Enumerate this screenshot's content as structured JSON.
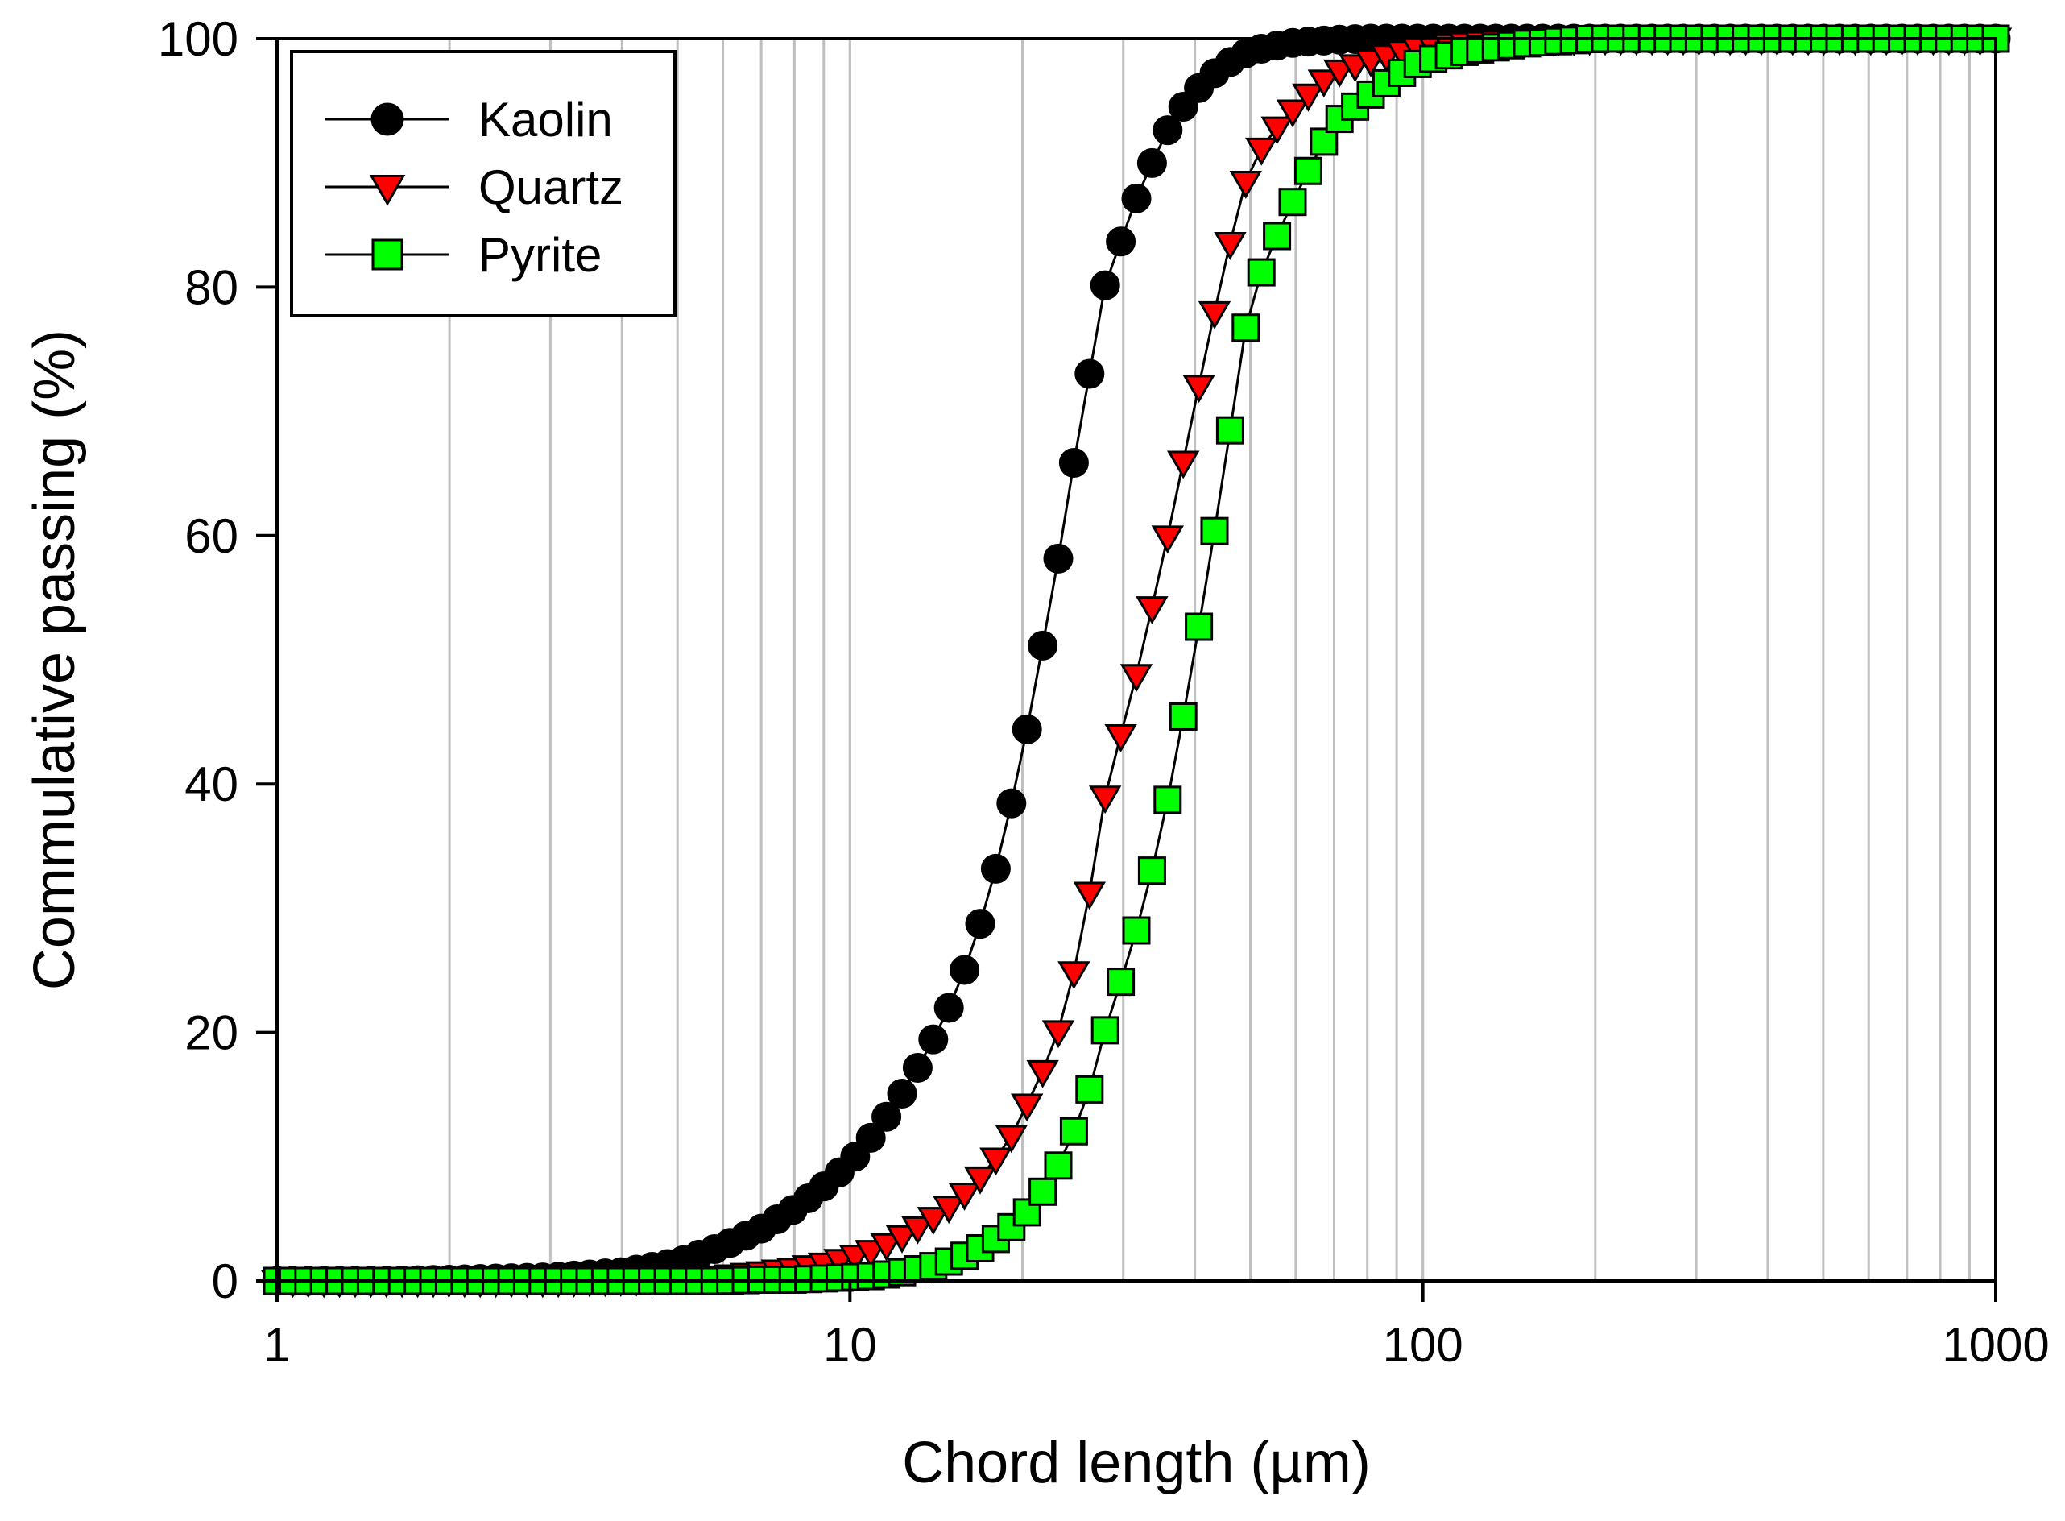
{
  "chart_data": {
    "type": "scatter",
    "xscale": "log",
    "xlim": [
      1,
      1000
    ],
    "ylim": [
      0,
      100
    ],
    "xlabel": "Chord length (µm)",
    "ylabel": "Commulative passing (%)",
    "xticks": [
      1,
      10,
      100,
      1000
    ],
    "xtick_labels": [
      "1",
      "10",
      "100",
      "1000"
    ],
    "yticks": [
      0,
      20,
      40,
      60,
      80,
      100
    ],
    "ytick_labels": [
      "0",
      "20",
      "40",
      "60",
      "80",
      "100"
    ],
    "grid": "vertical minor and major gridlines on x axis",
    "legend_position": "top-left",
    "series": [
      {
        "name": "Kaolin",
        "marker": "circle",
        "color": "#000000",
        "edge": "#000000",
        "x": [
          1,
          1.5,
          2,
          3,
          4,
          5,
          6,
          7,
          8,
          9,
          10,
          11,
          12,
          13,
          14,
          15,
          16,
          17,
          18,
          19,
          20,
          21,
          22,
          23,
          24,
          25,
          26,
          27,
          28,
          30,
          32,
          34,
          36,
          38,
          40,
          42,
          44,
          46,
          48,
          50,
          55,
          60,
          65,
          70,
          80,
          90,
          100,
          120,
          150,
          200,
          300,
          500,
          1000
        ],
        "y": [
          0,
          0,
          0.1,
          0.3,
          0.7,
          1.5,
          2.8,
          4.2,
          5.8,
          7.6,
          9.5,
          11.8,
          14.2,
          16.8,
          19.5,
          22.3,
          25.5,
          29.2,
          33.3,
          37.8,
          42.5,
          47.5,
          52.7,
          57.6,
          62.9,
          67.8,
          72.2,
          76.4,
          80.6,
          84.2,
          87.8,
          90.4,
          92.8,
          94.4,
          95.7,
          96.7,
          97.5,
          98.1,
          98.6,
          99.0,
          99.4,
          99.7,
          99.8,
          99.9,
          100,
          100,
          100,
          100,
          100,
          100,
          100,
          100,
          100
        ]
      },
      {
        "name": "Quartz",
        "marker": "triangle-down",
        "color": "#ff0000",
        "edge": "#000000",
        "x": [
          1,
          1.5,
          2,
          3,
          4,
          5,
          6,
          7,
          8,
          9,
          10,
          11,
          12,
          13,
          14,
          15,
          16,
          17,
          18,
          19,
          20,
          21,
          22,
          23,
          24,
          25,
          26,
          27,
          28,
          30,
          32,
          34,
          36,
          38,
          40,
          42,
          44,
          46,
          48,
          50,
          55,
          60,
          65,
          70,
          80,
          90,
          100,
          120,
          150,
          200,
          300,
          500,
          1000
        ],
        "y": [
          0,
          0,
          0,
          0,
          0.1,
          0.2,
          0.4,
          0.7,
          1.0,
          1.4,
          1.9,
          2.5,
          3.3,
          4.2,
          5.1,
          6.1,
          7.2,
          8.5,
          9.9,
          11.4,
          13.4,
          15.5,
          17.5,
          19.8,
          22.8,
          26.2,
          30.4,
          34.8,
          39.5,
          44.7,
          49.7,
          55.1,
          60.3,
          65.5,
          70.5,
          75.2,
          79.5,
          83.4,
          86.8,
          89.9,
          92.6,
          94.5,
          96.1,
          97.3,
          98.2,
          98.9,
          99.3,
          99.7,
          99.9,
          100,
          100,
          100,
          100
        ]
      },
      {
        "name": "Pyrite",
        "marker": "square",
        "color": "#00ff00",
        "edge": "#000000",
        "x": [
          1,
          1.5,
          2,
          3,
          4,
          5,
          6,
          7,
          8,
          9,
          10,
          11,
          12,
          13,
          14,
          15,
          16,
          17,
          18,
          19,
          20,
          21,
          22,
          23,
          24,
          25,
          26,
          27,
          28,
          30,
          32,
          34,
          36,
          38,
          40,
          42,
          44,
          46,
          48,
          50,
          55,
          60,
          65,
          70,
          80,
          90,
          100,
          120,
          150,
          200,
          300,
          500,
          1000
        ],
        "y": [
          0,
          0,
          0,
          0,
          0,
          0,
          0,
          0.1,
          0.1,
          0.2,
          0.3,
          0.4,
          0.6,
          0.9,
          1.2,
          1.6,
          2.1,
          2.7,
          3.4,
          4.2,
          5.1,
          6.2,
          7.6,
          9.1,
          10.9,
          12.8,
          14.9,
          17.5,
          20.5,
          24.7,
          29.0,
          33.8,
          39.1,
          44.9,
          50.7,
          56.6,
          62.4,
          68.2,
          73.9,
          79.1,
          83.6,
          87.4,
          90.5,
          93.2,
          95.3,
          97.0,
          98.2,
          99.0,
          99.6,
          100,
          100,
          100,
          100
        ]
      }
    ]
  }
}
